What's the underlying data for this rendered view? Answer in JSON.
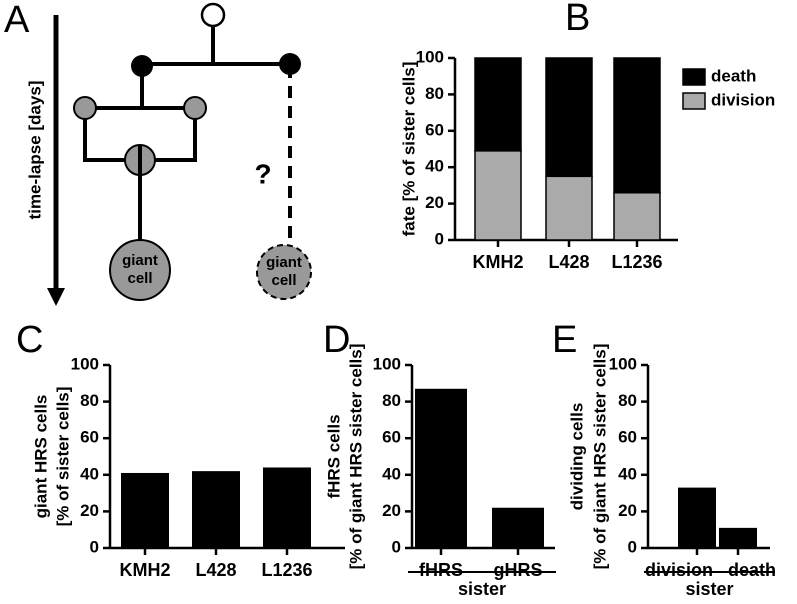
{
  "diagram": {
    "label": "A",
    "axis_label": "time-lapse [days]",
    "question": "?",
    "cells": [
      [
        "giant",
        "cell"
      ],
      [
        "giant",
        "cell"
      ]
    ]
  },
  "chart_data": [
    {
      "type": "bar",
      "stacked": true,
      "label": "B",
      "ylabel": [
        "fate [% of sister cells]"
      ],
      "categories": [
        "KMH2",
        "L428",
        "L1236"
      ],
      "series": [
        {
          "name": "death",
          "color": "#000000",
          "values": [
            51,
            65,
            74
          ]
        },
        {
          "name": "division",
          "color": "#aaaaaa",
          "values": [
            49,
            35,
            26
          ]
        }
      ],
      "ylim": [
        0,
        100
      ],
      "yticks": [
        0,
        20,
        40,
        60,
        80,
        100
      ]
    },
    {
      "type": "bar",
      "label": "C",
      "ylabel": [
        "giant HRS cells",
        "[% of sister cells]"
      ],
      "categories": [
        "KMH2",
        "L428",
        "L1236"
      ],
      "values": [
        41,
        42,
        44
      ],
      "color": "#000000",
      "ylim": [
        0,
        100
      ],
      "yticks": [
        0,
        20,
        40,
        60,
        80,
        100
      ]
    },
    {
      "type": "bar",
      "label": "D",
      "ylabel": [
        "fHRS cells",
        "[% of giant HRS sister cells]"
      ],
      "categories": [
        "fHRS",
        "gHRS"
      ],
      "values": [
        87,
        22
      ],
      "color": "#000000",
      "xlabel": "sister",
      "ylim": [
        0,
        100
      ],
      "yticks": [
        0,
        20,
        40,
        60,
        80,
        100
      ]
    },
    {
      "type": "bar",
      "label": "E",
      "ylabel": [
        "dividing cells",
        "[% of giant HRS sister cells]"
      ],
      "categories": [
        "division",
        "death"
      ],
      "values": [
        33,
        11
      ],
      "color": "#000000",
      "xlabel": "sister",
      "ylim": [
        0,
        100
      ],
      "yticks": [
        0,
        20,
        40,
        60,
        80,
        100
      ]
    }
  ]
}
